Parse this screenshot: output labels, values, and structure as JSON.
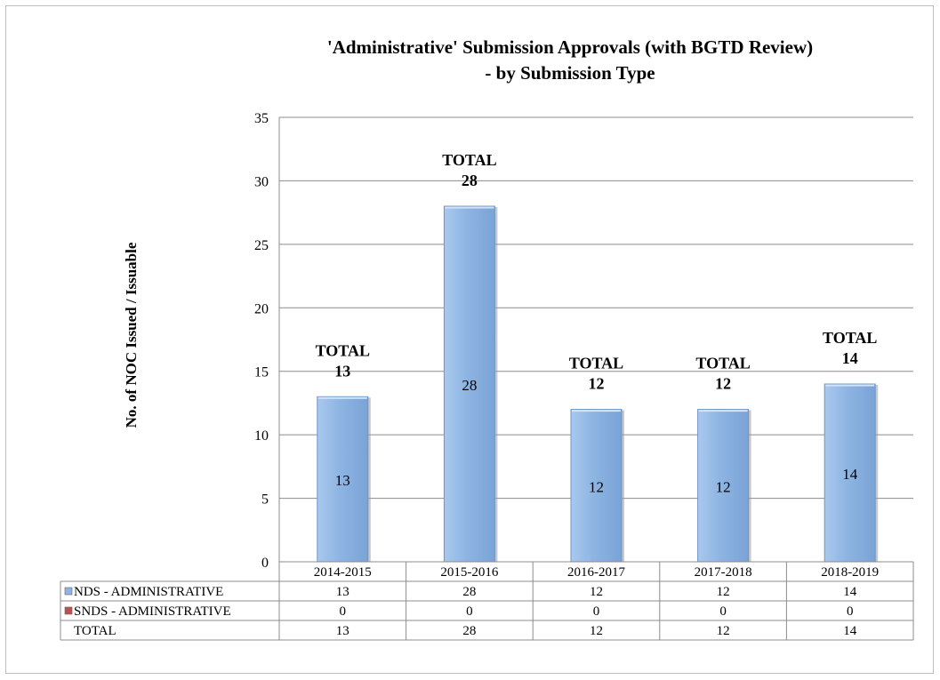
{
  "chart_data": {
    "type": "bar",
    "title": "'Administrative'  Submission Approvals (with BGTD Review)",
    "subtitle": "- by Submission Type",
    "ylabel": "No. of NOC Issued / Issuable",
    "xlabel": "",
    "ylim": [
      0,
      35
    ],
    "yticks": [
      0,
      5,
      10,
      15,
      20,
      25,
      30,
      35
    ],
    "grid": true,
    "categories": [
      "2014-2015",
      "2015-2016",
      "2016-2017",
      "2017-2018",
      "2018-2019"
    ],
    "series": [
      {
        "name": "NDS - ADMINISTRATIVE",
        "color": "#8db4e2",
        "values": [
          13,
          28,
          12,
          12,
          14
        ]
      },
      {
        "name": "SNDS - ADMINISTRATIVE",
        "color": "#c0504d",
        "values": [
          0,
          0,
          0,
          0,
          0
        ]
      }
    ],
    "total_label": "TOTAL",
    "totals": [
      13,
      28,
      12,
      12,
      14
    ],
    "legend": "data-table"
  }
}
